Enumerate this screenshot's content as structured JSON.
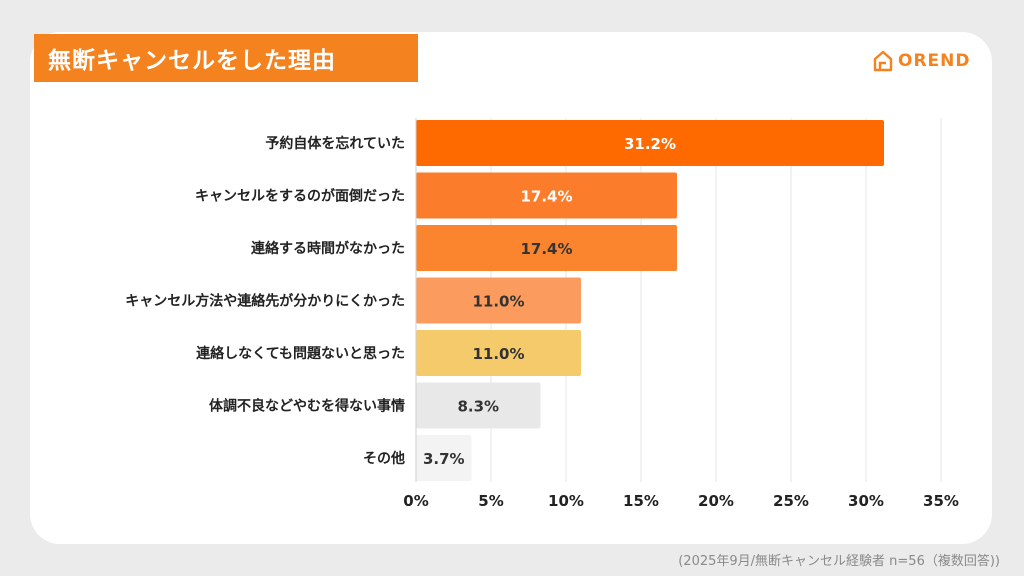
{
  "title": "無断キャンセルをした理由",
  "brand": {
    "name": "OREND",
    "icon": "house-logo-icon",
    "color": "#f4831f"
  },
  "footnote": "(2025年9月/無断キャンセル経験者 n=56（複数回答))",
  "colors": {
    "accent": "#f4831f",
    "bar_colors": [
      "#ff6a00",
      "#fb7d2c",
      "#fb842f",
      "#fc9b5e",
      "#f5ca6b",
      "#e8e8e8",
      "#f3f3f3"
    ]
  },
  "chart_data": {
    "type": "bar",
    "orientation": "horizontal",
    "categories": [
      "予約自体を忘れていた",
      "キャンセルをするのが面倒だった",
      "連絡する時間がなかった",
      "キャンセル方法や連絡先が分かりにくかった",
      "連絡しなくても問題ないと思った",
      "体調不良などやむを得ない事情",
      "その他"
    ],
    "values": [
      31.2,
      17.4,
      17.4,
      11.0,
      11.0,
      8.3,
      3.7
    ],
    "value_labels": [
      "31.2%",
      "17.4%",
      "17.4%",
      "11.0%",
      "11.0%",
      "8.3%",
      "3.7%"
    ],
    "label_colors": [
      "#ffffff",
      "#ffffff",
      "#333333",
      "#333333",
      "#333333",
      "#333333",
      "#333333"
    ],
    "xlim": [
      0,
      35
    ],
    "xticks": [
      0,
      5,
      10,
      15,
      20,
      25,
      30,
      35
    ],
    "xtick_labels": [
      "0%",
      "5%",
      "10%",
      "15%",
      "20%",
      "25%",
      "30%",
      "35%"
    ],
    "grid": true,
    "legend": "none"
  }
}
